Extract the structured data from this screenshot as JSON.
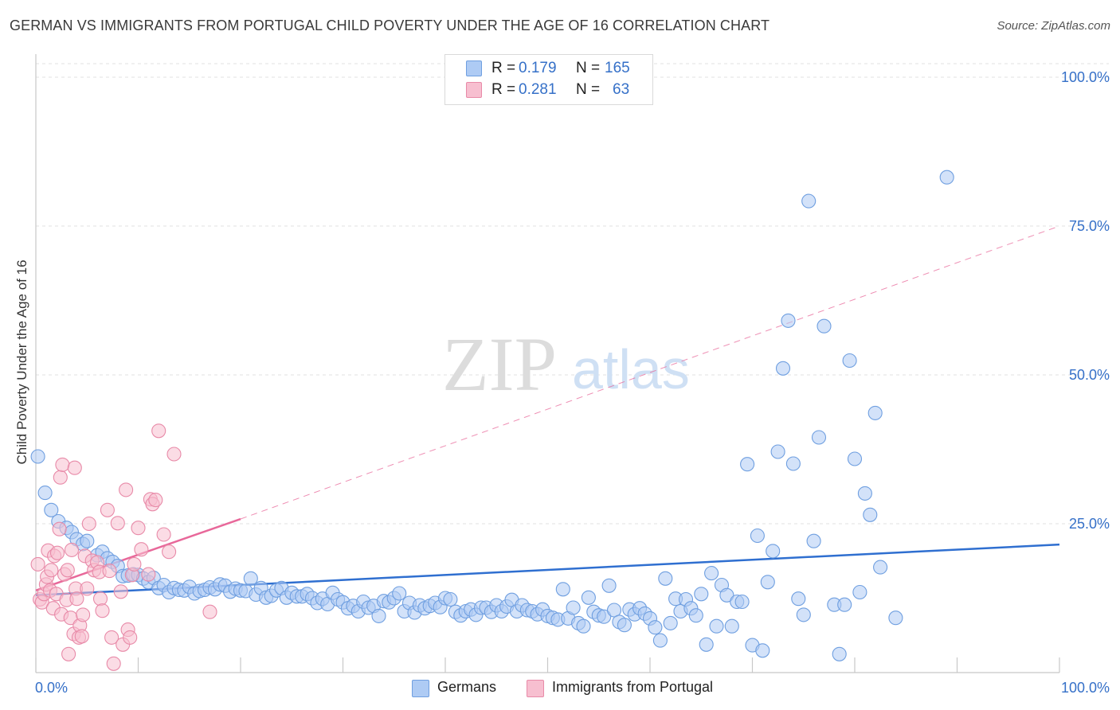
{
  "title": "GERMAN VS IMMIGRANTS FROM PORTUGAL CHILD POVERTY UNDER THE AGE OF 16 CORRELATION CHART",
  "source": "Source: ZipAtlas.com",
  "watermark": {
    "zip": "ZIP",
    "atlas": "atlas"
  },
  "legend": {
    "r_label": "R =",
    "n_label": "N =",
    "rows": [
      {
        "series": "Germans",
        "r": "0.179",
        "n": "165",
        "color": "#aecbf4",
        "stroke": "#6f9fe0"
      },
      {
        "series": "Immigrants from Portugal",
        "r": "0.281",
        "n": "63",
        "color": "#f7bfd0",
        "stroke": "#e88aa8"
      }
    ]
  },
  "colors": {
    "blue_line": "#2f6fd0",
    "pink_line": "#e8689a",
    "axis_text": "#3570c8",
    "grid": "#e2e2e2"
  },
  "chart_data": {
    "type": "scatter",
    "title": "GERMAN VS IMMIGRANTS FROM PORTUGAL CHILD POVERTY UNDER THE AGE OF 16 CORRELATION CHART",
    "xlabel": "",
    "ylabel": "Child Poverty Under the Age of 16",
    "xlim": [
      0,
      100
    ],
    "ylim": [
      0,
      100
    ],
    "x_tick_labels": [
      "0.0%",
      "100.0%"
    ],
    "y_tick_labels": [
      "25.0%",
      "50.0%",
      "75.0%",
      "100.0%"
    ],
    "y_tick_values": [
      25,
      50,
      75,
      100
    ],
    "x_minor_ticks": [
      0,
      10,
      20,
      30,
      40,
      50,
      60,
      70,
      80,
      90,
      100
    ],
    "grid": true,
    "legend_position": "top-center",
    "series": [
      {
        "name": "Germans",
        "color": "#aecbf4",
        "trend": {
          "x": [
            0,
            100
          ],
          "y": [
            13.0,
            21.5
          ],
          "style": "solid",
          "color": "#2f6fd0"
        },
        "points": [
          [
            0.2,
            36.3
          ],
          [
            0.9,
            30.2
          ],
          [
            1.5,
            27.3
          ],
          [
            2.2,
            25.4
          ],
          [
            3,
            24.3
          ],
          [
            3.5,
            23.6
          ],
          [
            4,
            22.4
          ],
          [
            4.6,
            21.6
          ],
          [
            5,
            22.1
          ],
          [
            6,
            19.7
          ],
          [
            6.5,
            20.3
          ],
          [
            7,
            19.2
          ],
          [
            7.5,
            18.6
          ],
          [
            8,
            17.9
          ],
          [
            8.5,
            16.2
          ],
          [
            9,
            16.3
          ],
          [
            9.5,
            16.5
          ],
          [
            10,
            16.4
          ],
          [
            10.5,
            15.8
          ],
          [
            11,
            15.2
          ],
          [
            11.5,
            15.9
          ],
          [
            12,
            14.2
          ],
          [
            12.5,
            14.7
          ],
          [
            13,
            13.5
          ],
          [
            13.5,
            14.2
          ],
          [
            14,
            13.9
          ],
          [
            14.5,
            13.8
          ],
          [
            15,
            14.4
          ],
          [
            15.5,
            13.3
          ],
          [
            16,
            13.7
          ],
          [
            16.5,
            13.9
          ],
          [
            17,
            14.3
          ],
          [
            17.5,
            14.0
          ],
          [
            18,
            14.8
          ],
          [
            18.5,
            14.6
          ],
          [
            19,
            13.6
          ],
          [
            19.5,
            14.1
          ],
          [
            20,
            13.8
          ],
          [
            20.5,
            13.7
          ],
          [
            21,
            15.8
          ],
          [
            21.5,
            13.1
          ],
          [
            22,
            14.2
          ],
          [
            22.5,
            12.6
          ],
          [
            23,
            12.9
          ],
          [
            23.5,
            13.8
          ],
          [
            24,
            14.2
          ],
          [
            24.5,
            12.6
          ],
          [
            25,
            13.4
          ],
          [
            25.5,
            12.8
          ],
          [
            26,
            12.8
          ],
          [
            26.5,
            13.2
          ],
          [
            27,
            12.5
          ],
          [
            27.5,
            11.7
          ],
          [
            28,
            12.4
          ],
          [
            28.5,
            11.5
          ],
          [
            29,
            13.4
          ],
          [
            29.5,
            12.3
          ],
          [
            30,
            11.8
          ],
          [
            30.5,
            10.8
          ],
          [
            31,
            11.2
          ],
          [
            31.5,
            10.3
          ],
          [
            32,
            11.9
          ],
          [
            32.5,
            10.9
          ],
          [
            33,
            11.2
          ],
          [
            33.5,
            9.5
          ],
          [
            34,
            12.0
          ],
          [
            34.5,
            11.8
          ],
          [
            35,
            12.5
          ],
          [
            35.5,
            13.3
          ],
          [
            36,
            10.3
          ],
          [
            36.5,
            11.7
          ],
          [
            37,
            10.1
          ],
          [
            37.5,
            11.3
          ],
          [
            38,
            10.8
          ],
          [
            38.5,
            11.2
          ],
          [
            39,
            11.7
          ],
          [
            39.5,
            11.0
          ],
          [
            40,
            12.5
          ],
          [
            40.5,
            12.3
          ],
          [
            41,
            10.2
          ],
          [
            41.5,
            9.6
          ],
          [
            42,
            10.3
          ],
          [
            42.5,
            10.6
          ],
          [
            43,
            9.7
          ],
          [
            43.5,
            10.9
          ],
          [
            44,
            10.9
          ],
          [
            44.5,
            10.2
          ],
          [
            45,
            11.3
          ],
          [
            45.5,
            10.3
          ],
          [
            46,
            11.1
          ],
          [
            46.5,
            12.2
          ],
          [
            47,
            10.3
          ],
          [
            47.5,
            11.3
          ],
          [
            48,
            10.5
          ],
          [
            48.5,
            10.3
          ],
          [
            49,
            9.8
          ],
          [
            49.5,
            10.6
          ],
          [
            50,
            9.5
          ],
          [
            50.5,
            9.2
          ],
          [
            51,
            8.9
          ],
          [
            51.5,
            14.0
          ],
          [
            52,
            9.1
          ],
          [
            52.5,
            10.9
          ],
          [
            53,
            8.3
          ],
          [
            53.5,
            7.8
          ],
          [
            54,
            12.6
          ],
          [
            54.5,
            10.2
          ],
          [
            55,
            9.6
          ],
          [
            55.5,
            9.4
          ],
          [
            56,
            14.6
          ],
          [
            56.5,
            10.5
          ],
          [
            57,
            8.5
          ],
          [
            57.5,
            8.0
          ],
          [
            58,
            10.6
          ],
          [
            58.5,
            9.8
          ],
          [
            59,
            10.8
          ],
          [
            59.5,
            9.9
          ],
          [
            60,
            9.1
          ],
          [
            60.5,
            7.6
          ],
          [
            61,
            5.4
          ],
          [
            61.5,
            15.8
          ],
          [
            62,
            8.3
          ],
          [
            62.5,
            12.4
          ],
          [
            63,
            10.3
          ],
          [
            63.5,
            12.3
          ],
          [
            64,
            10.8
          ],
          [
            64.5,
            9.6
          ],
          [
            65,
            13.2
          ],
          [
            65.5,
            4.7
          ],
          [
            66,
            16.7
          ],
          [
            66.5,
            7.8
          ],
          [
            67,
            14.7
          ],
          [
            67.5,
            13.0
          ],
          [
            68,
            7.8
          ],
          [
            68.5,
            11.9
          ],
          [
            69,
            11.9
          ],
          [
            69.5,
            35.0
          ],
          [
            70,
            4.6
          ],
          [
            70.5,
            23.0
          ],
          [
            71,
            3.7
          ],
          [
            71.5,
            15.2
          ],
          [
            72,
            20.4
          ],
          [
            72.5,
            37.1
          ],
          [
            73,
            51.1
          ],
          [
            73.5,
            59.1
          ],
          [
            74,
            35.1
          ],
          [
            74.5,
            12.4
          ],
          [
            75,
            9.7
          ],
          [
            75.5,
            79.2
          ],
          [
            76,
            22.1
          ],
          [
            76.5,
            39.5
          ],
          [
            77,
            58.2
          ],
          [
            78,
            11.4
          ],
          [
            78.5,
            3.1
          ],
          [
            79,
            11.4
          ],
          [
            79.5,
            52.4
          ],
          [
            80,
            35.9
          ],
          [
            80.5,
            13.5
          ],
          [
            81,
            30.1
          ],
          [
            81.5,
            26.5
          ],
          [
            82,
            43.6
          ],
          [
            82.5,
            17.7
          ],
          [
            84,
            9.2
          ],
          [
            89,
            83.2
          ]
        ]
      },
      {
        "name": "Immigrants from Portugal",
        "color": "#f7bfd0",
        "trend": {
          "x": [
            0,
            20
          ],
          "y": [
            13.8,
            25.8
          ],
          "style": "solid",
          "color": "#e8689a",
          "extension": {
            "x": [
              20,
              100
            ],
            "y": [
              25.8,
              75.0
            ],
            "style": "dashed"
          }
        },
        "points": [
          [
            0.2,
            18.2
          ],
          [
            0.4,
            12.3
          ],
          [
            0.6,
            11.8
          ],
          [
            0.8,
            13.2
          ],
          [
            1,
            14.8
          ],
          [
            1.1,
            16.1
          ],
          [
            1.2,
            20.5
          ],
          [
            1.4,
            13.8
          ],
          [
            1.5,
            17.2
          ],
          [
            1.7,
            10.8
          ],
          [
            1.8,
            19.6
          ],
          [
            2,
            13.2
          ],
          [
            2.1,
            20.1
          ],
          [
            2.3,
            24.1
          ],
          [
            2.4,
            32.8
          ],
          [
            2.5,
            9.8
          ],
          [
            2.6,
            34.9
          ],
          [
            2.8,
            16.5
          ],
          [
            3,
            12.2
          ],
          [
            3.1,
            17.2
          ],
          [
            3.2,
            3.1
          ],
          [
            3.4,
            9.2
          ],
          [
            3.5,
            20.6
          ],
          [
            3.7,
            6.5
          ],
          [
            3.8,
            34.4
          ],
          [
            3.9,
            14.1
          ],
          [
            4,
            12.4
          ],
          [
            4.2,
            5.9
          ],
          [
            4.3,
            7.9
          ],
          [
            4.5,
            6.1
          ],
          [
            4.6,
            9.7
          ],
          [
            4.8,
            19.6
          ],
          [
            5,
            14.1
          ],
          [
            5.2,
            25.0
          ],
          [
            5.5,
            18.8
          ],
          [
            5.7,
            17.2
          ],
          [
            6,
            18.5
          ],
          [
            6.2,
            16.9
          ],
          [
            6.3,
            12.4
          ],
          [
            6.5,
            10.4
          ],
          [
            7,
            27.3
          ],
          [
            7.2,
            17.1
          ],
          [
            7.4,
            5.9
          ],
          [
            7.6,
            1.5
          ],
          [
            8,
            25.1
          ],
          [
            8.3,
            13.6
          ],
          [
            8.5,
            4.7
          ],
          [
            8.8,
            30.7
          ],
          [
            9,
            7.2
          ],
          [
            9.2,
            5.9
          ],
          [
            9.4,
            16.4
          ],
          [
            9.6,
            18.2
          ],
          [
            10,
            24.3
          ],
          [
            10.3,
            20.7
          ],
          [
            11,
            16.5
          ],
          [
            11.2,
            29.1
          ],
          [
            11.4,
            28.3
          ],
          [
            11.7,
            29.0
          ],
          [
            12,
            40.6
          ],
          [
            12.5,
            23.2
          ],
          [
            13,
            20.3
          ],
          [
            13.5,
            36.7
          ],
          [
            17,
            10.2
          ]
        ]
      }
    ]
  },
  "axis_labels": {
    "x_min": "0.0%",
    "x_max": "100.0%"
  }
}
